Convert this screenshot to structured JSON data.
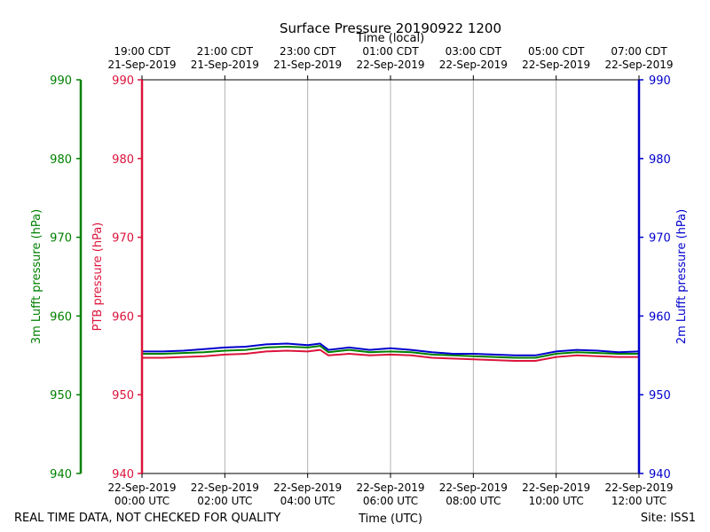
{
  "chart_data": {
    "type": "line",
    "title": "Surface Pressure 20190922 1200",
    "top_axis_label": "Time (local)",
    "bottom_axis_label": "Time (UTC)",
    "footer_left": "REAL TIME DATA, NOT CHECKED FOR QUALITY",
    "footer_right": "Site: ISS1",
    "xlim_hours": [
      0,
      12
    ],
    "utc_ticks": [
      {
        "hour": 0,
        "date": "22-Sep-2019",
        "time": "00:00 UTC"
      },
      {
        "hour": 2,
        "date": "22-Sep-2019",
        "time": "02:00 UTC"
      },
      {
        "hour": 4,
        "date": "22-Sep-2019",
        "time": "04:00 UTC"
      },
      {
        "hour": 6,
        "date": "22-Sep-2019",
        "time": "06:00 UTC"
      },
      {
        "hour": 8,
        "date": "22-Sep-2019",
        "time": "08:00 UTC"
      },
      {
        "hour": 10,
        "date": "22-Sep-2019",
        "time": "10:00 UTC"
      },
      {
        "hour": 12,
        "date": "22-Sep-2019",
        "time": "12:00 UTC"
      }
    ],
    "local_ticks": [
      {
        "hour": 0,
        "time": "19:00 CDT",
        "date": "21-Sep-2019"
      },
      {
        "hour": 2,
        "time": "21:00 CDT",
        "date": "21-Sep-2019"
      },
      {
        "hour": 4,
        "time": "23:00 CDT",
        "date": "21-Sep-2019"
      },
      {
        "hour": 6,
        "time": "01:00 CDT",
        "date": "22-Sep-2019"
      },
      {
        "hour": 8,
        "time": "03:00 CDT",
        "date": "22-Sep-2019"
      },
      {
        "hour": 10,
        "time": "05:00 CDT",
        "date": "22-Sep-2019"
      },
      {
        "hour": 12,
        "time": "07:00 CDT",
        "date": "22-Sep-2019"
      }
    ],
    "y_axes": [
      {
        "name": "3m Lufft pressure (hPa)",
        "color": "#008000",
        "ylim": [
          940,
          990
        ],
        "ticks": [
          940,
          950,
          960,
          970,
          980,
          990
        ]
      },
      {
        "name": "PTB pressure (hPa)",
        "color": "#dc143c",
        "ylim": [
          940,
          990
        ],
        "ticks": [
          940,
          950,
          960,
          970,
          980,
          990
        ]
      },
      {
        "name": "2m Lufft pressure (hPa)",
        "color": "#0000cd",
        "ylim": [
          940,
          990
        ],
        "ticks": [
          940,
          950,
          960,
          970,
          980,
          990
        ]
      }
    ],
    "grid": "vertical",
    "x": [
      0,
      0.5,
      1,
      1.5,
      2,
      2.5,
      3,
      3.5,
      4,
      4.3,
      4.5,
      5,
      5.5,
      6,
      6.5,
      7,
      7.5,
      8,
      8.5,
      9,
      9.5,
      10,
      10.5,
      11,
      11.5,
      12
    ],
    "series": [
      {
        "name": "PTB pressure (hPa)",
        "color": "#dc143c",
        "values": [
          954.7,
          954.7,
          954.8,
          954.9,
          955.1,
          955.2,
          955.5,
          955.6,
          955.5,
          955.7,
          955.0,
          955.2,
          955.0,
          955.1,
          955.0,
          954.7,
          954.6,
          954.5,
          954.4,
          954.3,
          954.3,
          954.8,
          955.0,
          954.9,
          954.8,
          954.8
        ]
      },
      {
        "name": "3m Lufft pressure (hPa)",
        "color": "#008000",
        "values": [
          955.2,
          955.2,
          955.3,
          955.4,
          955.6,
          955.7,
          956.0,
          956.1,
          956.0,
          956.2,
          955.4,
          955.7,
          955.4,
          955.5,
          955.4,
          955.1,
          955.0,
          954.9,
          954.8,
          954.7,
          954.7,
          955.2,
          955.4,
          955.3,
          955.2,
          955.2
        ]
      },
      {
        "name": "2m Lufft pressure (hPa)",
        "color": "#0000cd",
        "values": [
          955.5,
          955.5,
          955.6,
          955.8,
          956.0,
          956.1,
          956.4,
          956.5,
          956.3,
          956.5,
          955.7,
          956.0,
          955.7,
          955.9,
          955.7,
          955.4,
          955.2,
          955.2,
          955.1,
          955.0,
          955.0,
          955.5,
          955.7,
          955.6,
          955.4,
          955.5
        ]
      }
    ]
  }
}
